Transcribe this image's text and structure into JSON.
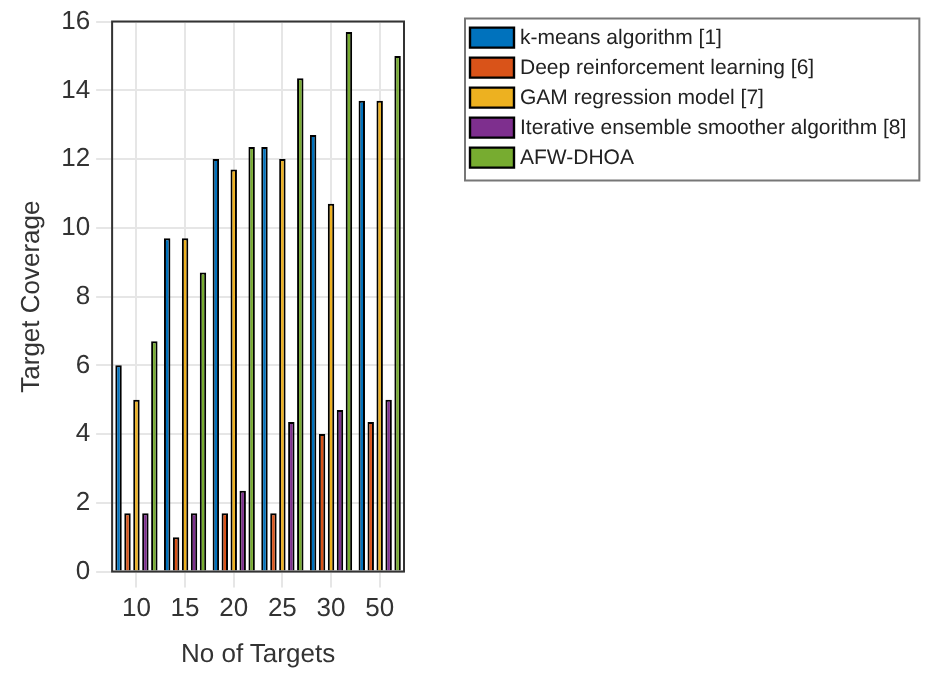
{
  "chart_data": {
    "type": "bar",
    "xlabel": "No of Targets",
    "ylabel": "Target Coverage",
    "categories": [
      "10",
      "15",
      "20",
      "25",
      "30",
      "50"
    ],
    "series": [
      {
        "name": "k-means algorithm [1]",
        "color": "#0072bd",
        "values": [
          6,
          9.7,
          12,
          12.35,
          12.7,
          13.7
        ]
      },
      {
        "name": "Deep reinforcement learning [6]",
        "color": "#d95319",
        "values": [
          1.7,
          1.0,
          1.7,
          1.7,
          4.0,
          4.35
        ]
      },
      {
        "name": "GAM regression model [7]",
        "color": "#edb120",
        "values": [
          5.0,
          9.7,
          11.7,
          12.0,
          10.7,
          13.7
        ]
      },
      {
        "name": "Iterative ensemble smoother algorithm [8]",
        "color": "#7e2f8e",
        "values": [
          1.7,
          1.7,
          2.35,
          4.35,
          4.7,
          5.0
        ]
      },
      {
        "name": "AFW-DHOA",
        "color": "#77ac30",
        "values": [
          6.7,
          8.7,
          12.35,
          14.35,
          15.7,
          15.0
        ]
      }
    ],
    "ylim": [
      0,
      16
    ],
    "yticks": [
      0,
      2,
      4,
      6,
      8,
      10,
      12,
      14,
      16
    ],
    "grid": true,
    "legend": "top right"
  }
}
